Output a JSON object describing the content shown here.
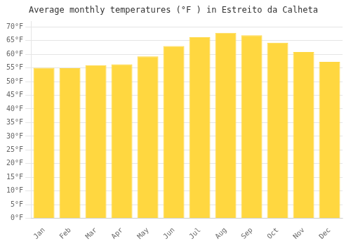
{
  "chart_data": {
    "type": "bar",
    "title": "Average monthly temperatures (°F ) in Estreito da Calheta",
    "categories": [
      "Jan",
      "Feb",
      "Mar",
      "Apr",
      "May",
      "Jun",
      "Jul",
      "Aug",
      "Sep",
      "Oct",
      "Nov",
      "Dec"
    ],
    "values": [
      55.0,
      54.9,
      56.0,
      56.3,
      59.2,
      63.0,
      66.2,
      67.8,
      66.9,
      64.2,
      60.8,
      57.2
    ],
    "color": "#FFD740",
    "ylim": [
      0,
      72
    ],
    "yticks": [
      {
        "value": 0,
        "label": "0°F"
      },
      {
        "value": 5,
        "label": "5°F"
      },
      {
        "value": 10,
        "label": "10°F"
      },
      {
        "value": 15,
        "label": "15°F"
      },
      {
        "value": 20,
        "label": "20°F"
      },
      {
        "value": 25,
        "label": "25°F"
      },
      {
        "value": 30,
        "label": "30°F"
      },
      {
        "value": 35,
        "label": "35°F"
      },
      {
        "value": 40,
        "label": "40°F"
      },
      {
        "value": 45,
        "label": "45°F"
      },
      {
        "value": 50,
        "label": "50°F"
      },
      {
        "value": 55,
        "label": "55°F"
      },
      {
        "value": 60,
        "label": "60°F"
      },
      {
        "value": 65,
        "label": "65°F"
      },
      {
        "value": 70,
        "label": "70°F"
      }
    ],
    "grid": true
  }
}
